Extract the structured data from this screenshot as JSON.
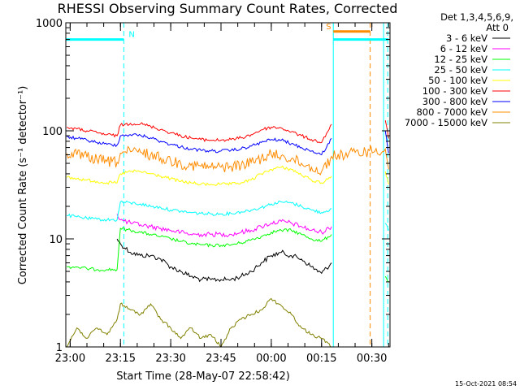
{
  "chart_data": {
    "type": "line",
    "title": "RHESSI Observing Summary Count Rates, Corrected",
    "xlabel": "Start Time (28-May-07 22:58:42)",
    "ylabel": "Corrected Count Rate (s⁻¹ detector⁻¹)",
    "y_scale": "log",
    "ylim": [
      1,
      1000
    ],
    "y_ticks": [
      "1",
      "10",
      "100",
      "1000"
    ],
    "xlim": [
      "22:58:42",
      "00:35:25"
    ],
    "x_ticks": [
      "23:00",
      "23:15",
      "23:30",
      "23:45",
      "00:00",
      "00:15",
      "00:30"
    ],
    "legend_header": [
      "Det 1,3,4,5,6,9,",
      "Att 0"
    ],
    "legend_position": "right",
    "timestamp": "15-Oct-2021 08:54",
    "flags": [
      {
        "label": "N",
        "color": "#00ffff",
        "start": "22:58:42",
        "end": "23:16:00",
        "y": 700
      },
      {
        "label": "S",
        "color": "#ff8c00",
        "start": "00:18:30",
        "end": "00:29:30",
        "y": 830
      },
      {
        "color": "#00ffff",
        "start": "00:18:30",
        "end": "00:35:00",
        "y": 700
      }
    ],
    "vlines": [
      {
        "x": "00:18:30",
        "color": "#00ffff",
        "style": "solid"
      },
      {
        "x": "00:33:30",
        "color": "#00ffff",
        "style": "solid"
      },
      {
        "x": "23:16:00",
        "color": "#00ffff",
        "style": "dashed"
      },
      {
        "x": "00:34:45",
        "color": "#00ffff",
        "style": "dashed"
      },
      {
        "x": "00:29:30",
        "color": "#ff8c00",
        "style": "dashed"
      }
    ],
    "series": [
      {
        "name": "3 - 6 keV",
        "color": "#000000",
        "x": [
          "23:14",
          "23:15",
          "23:18",
          "23:21",
          "23:24",
          "23:27",
          "23:30",
          "23:33",
          "23:36",
          "23:39",
          "23:42",
          "23:45",
          "23:48",
          "23:51",
          "23:54",
          "23:57",
          "00:00",
          "00:03",
          "00:06",
          "00:09",
          "00:12",
          "00:15",
          "00:18"
        ],
        "y": [
          10,
          9,
          7.5,
          7,
          7,
          6.5,
          5.5,
          5,
          4.5,
          4.2,
          4.2,
          4.2,
          4.2,
          4.5,
          5,
          6,
          7,
          7.5,
          7,
          6.5,
          5.5,
          4.8,
          6
        ]
      },
      {
        "name": "6 - 12 keV",
        "color": "#ff00ff",
        "x": [
          "23:14",
          "23:15",
          "23:18",
          "23:21",
          "23:24",
          "23:27",
          "23:30",
          "23:33",
          "23:36",
          "23:39",
          "23:42",
          "23:45",
          "23:48",
          "23:51",
          "23:54",
          "23:57",
          "00:00",
          "00:03",
          "00:06",
          "00:09",
          "00:12",
          "00:15",
          "00:18"
        ],
        "y": [
          17,
          15,
          14,
          13.5,
          13,
          12.5,
          12,
          11.5,
          11,
          11,
          11,
          11,
          11,
          11.5,
          12,
          13,
          14,
          14.5,
          14,
          13,
          12,
          11.5,
          13
        ]
      },
      {
        "name": "12 - 25 keV",
        "color": "#00ff00",
        "x": [
          "22:59",
          "23:02",
          "23:05",
          "23:08",
          "23:11",
          "23:14",
          "23:15",
          "23:18",
          "23:21",
          "23:24",
          "23:27",
          "23:30",
          "23:33",
          "23:36",
          "23:39",
          "23:42",
          "23:45",
          "23:48",
          "23:51",
          "23:54",
          "23:57",
          "00:00",
          "00:03",
          "00:06",
          "00:09",
          "00:12",
          "00:15",
          "00:18",
          "00:34",
          "00:35"
        ],
        "y": [
          5.5,
          5.5,
          5.3,
          5.2,
          5.2,
          5.2,
          12.5,
          12,
          11.5,
          11,
          10.5,
          10,
          9.5,
          9,
          8.8,
          8.7,
          8.7,
          8.8,
          9.2,
          9.8,
          10.5,
          11.5,
          12,
          12,
          11,
          10,
          9.5,
          11,
          4.5,
          4
        ]
      },
      {
        "name": "25 - 50 keV",
        "color": "#00ffff",
        "x": [
          "22:59",
          "23:02",
          "23:05",
          "23:08",
          "23:11",
          "23:14",
          "23:15",
          "23:18",
          "23:21",
          "23:24",
          "23:27",
          "23:30",
          "23:33",
          "23:36",
          "23:39",
          "23:42",
          "23:45",
          "23:48",
          "23:51",
          "23:54",
          "23:57",
          "00:00",
          "00:03",
          "00:06",
          "00:09",
          "00:12",
          "00:15",
          "00:18",
          "00:34",
          "00:35"
        ],
        "y": [
          16.5,
          16,
          15.5,
          15.2,
          15,
          15,
          22,
          21.5,
          21,
          20,
          19.5,
          18.5,
          18,
          17.5,
          17.2,
          17,
          17,
          17.2,
          17.8,
          18.5,
          19.5,
          21,
          22,
          21.5,
          20,
          18.5,
          17.5,
          19,
          14,
          12
        ]
      },
      {
        "name": "50 - 100 keV",
        "color": "#ffff00",
        "x": [
          "22:59",
          "23:02",
          "23:05",
          "23:08",
          "23:11",
          "23:14",
          "23:15",
          "23:18",
          "23:21",
          "23:24",
          "23:27",
          "23:30",
          "23:33",
          "23:36",
          "23:39",
          "23:42",
          "23:45",
          "23:48",
          "23:51",
          "23:54",
          "23:57",
          "00:00",
          "00:03",
          "00:06",
          "00:09",
          "00:12",
          "00:15",
          "00:18",
          "00:34",
          "00:35"
        ],
        "y": [
          37,
          36,
          35,
          34,
          33,
          33,
          40,
          42,
          42,
          40,
          38,
          36,
          34,
          33,
          32,
          32,
          32,
          32,
          33,
          35,
          40,
          44,
          46,
          44,
          39,
          35,
          33,
          38,
          42,
          32
        ]
      },
      {
        "name": "100 - 300 keV",
        "color": "#ff0000",
        "x": [
          "22:59",
          "23:02",
          "23:05",
          "23:08",
          "23:11",
          "23:14",
          "23:15",
          "23:18",
          "23:21",
          "23:24",
          "23:27",
          "23:30",
          "23:33",
          "23:36",
          "23:39",
          "23:42",
          "23:45",
          "23:48",
          "23:51",
          "23:54",
          "23:57",
          "00:00",
          "00:03",
          "00:06",
          "00:09",
          "00:12",
          "00:15",
          "00:18",
          "00:34",
          "00:35"
        ],
        "y": [
          108,
          104,
          100,
          96,
          92,
          90,
          113,
          117,
          116,
          110,
          103,
          96,
          90,
          86,
          83,
          82,
          82,
          83,
          86,
          92,
          102,
          108,
          106,
          98,
          90,
          83,
          78,
          115,
          125,
          85
        ]
      },
      {
        "name": "300 - 800 keV",
        "color": "#0000ff",
        "x": [
          "22:59",
          "23:02",
          "23:05",
          "23:08",
          "23:11",
          "23:14",
          "23:15",
          "23:18",
          "23:21",
          "23:24",
          "23:27",
          "23:30",
          "23:33",
          "23:36",
          "23:39",
          "23:42",
          "23:45",
          "23:48",
          "23:51",
          "23:54",
          "23:57",
          "00:00",
          "00:03",
          "00:06",
          "00:09",
          "00:12",
          "00:15",
          "00:18",
          "00:34",
          "00:35"
        ],
        "y": [
          88,
          85,
          82,
          78,
          75,
          74,
          90,
          92,
          91,
          86,
          80,
          75,
          71,
          68,
          66,
          65,
          65,
          66,
          68,
          72,
          78,
          83,
          82,
          76,
          70,
          65,
          60,
          85,
          100,
          62
        ]
      },
      {
        "name": "800 - 7000 keV",
        "color": "#ff8c00",
        "x": [
          "22:59",
          "23:02",
          "23:05",
          "23:08",
          "23:11",
          "23:14",
          "23:15",
          "23:18",
          "23:21",
          "23:24",
          "23:27",
          "23:30",
          "23:33",
          "23:36",
          "23:39",
          "23:42",
          "23:45",
          "23:48",
          "23:51",
          "23:54",
          "23:57",
          "00:00",
          "00:03",
          "00:06",
          "00:09",
          "00:12",
          "00:15",
          "00:18",
          "00:34",
          "00:35"
        ],
        "y": [
          62,
          60,
          57,
          54,
          52,
          51,
          62,
          64,
          63,
          60,
          56,
          53,
          50,
          48,
          47,
          46,
          46,
          47,
          48,
          51,
          56,
          60,
          59,
          55,
          50,
          46,
          42,
          58,
          68,
          44
        ]
      },
      {
        "name": "7000 - 15000 keV",
        "color": "#808000",
        "x": [
          "22:59",
          "23:02",
          "23:05",
          "23:08",
          "23:11",
          "23:14",
          "23:15",
          "23:18",
          "23:21",
          "23:24",
          "23:27",
          "23:30",
          "23:33",
          "23:36",
          "23:39",
          "23:42",
          "23:45",
          "23:48",
          "23:51",
          "23:54",
          "23:57",
          "00:00",
          "00:03",
          "00:06",
          "00:09",
          "00:12",
          "00:15",
          "00:18"
        ],
        "y": [
          1,
          1.5,
          1.2,
          1.5,
          1.3,
          1.8,
          2.5,
          2.2,
          2,
          2.5,
          1.8,
          1.5,
          1.2,
          1.5,
          1.2,
          1.3,
          1,
          1.5,
          1.8,
          2,
          2.2,
          2.8,
          2.4,
          2,
          1.5,
          1.3,
          1.2,
          1
        ]
      }
    ]
  }
}
